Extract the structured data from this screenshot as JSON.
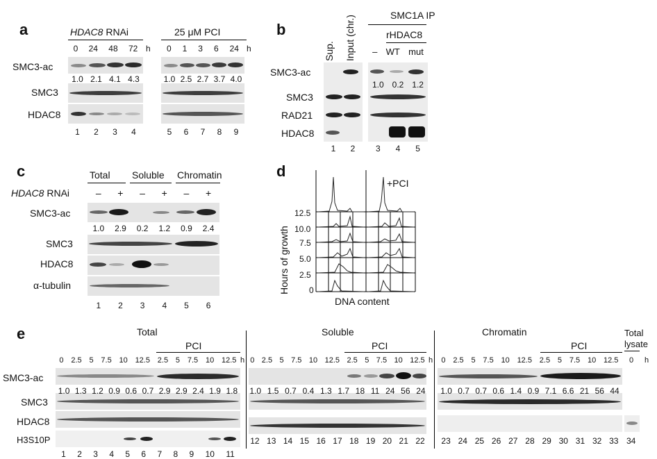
{
  "a": {
    "label": "a",
    "rnai_gene": "HDAC8",
    "rnai_suffix": " RNAi",
    "pci_title": "25 μM PCI",
    "rnai_times": [
      "0",
      "24",
      "48",
      "72"
    ],
    "pci_times": [
      "0",
      "1",
      "3",
      "6",
      "24"
    ],
    "unit": "h",
    "rows": [
      "SMC3-ac",
      "SMC3",
      "HDAC8"
    ],
    "rnai_quant": [
      "1.0",
      "2.1",
      "4.1",
      "4.3"
    ],
    "pci_quant": [
      "1.0",
      "2.5",
      "2.7",
      "3.7",
      "4.0"
    ],
    "rnai_lanes": [
      "1",
      "2",
      "3",
      "4"
    ],
    "pci_lanes": [
      "5",
      "6",
      "7",
      "8",
      "9"
    ]
  },
  "b": {
    "label": "b",
    "col_sup": "Sup.",
    "col_input": "Input (chr.)",
    "ip_title": "SMC1A IP",
    "rhdac8": "rHDAC8",
    "ip_cols": [
      "–",
      "WT",
      "mut"
    ],
    "rows": [
      "SMC3-ac",
      "SMC3",
      "RAD21",
      "HDAC8"
    ],
    "quant": [
      "1.0",
      "0.2",
      "1.2"
    ],
    "left_lanes": [
      "1",
      "2"
    ],
    "right_lanes": [
      "3",
      "4",
      "5"
    ]
  },
  "c": {
    "label": "c",
    "groups": [
      "Total",
      "Soluble",
      "Chromatin"
    ],
    "rnai_gene": "HDAC8",
    "rnai_suffix": " RNAi",
    "signs": [
      "–",
      "+",
      "–",
      "+",
      "–",
      "+"
    ],
    "rows": [
      "SMC3-ac",
      "SMC3",
      "HDAC8",
      "α-tubulin"
    ],
    "quant": [
      "1.0",
      "2.9",
      "0.2",
      "1.2",
      "0.9",
      "2.4"
    ],
    "lanes": [
      "1",
      "2",
      "3",
      "4",
      "5",
      "6"
    ]
  },
  "d": {
    "label": "d",
    "pci_label": "+PCI",
    "ylabel": "Hours of growth",
    "xlabel": "DNA content",
    "ticks": [
      "12.5",
      "10.0",
      "7.5",
      "5.0",
      "2.5",
      "0"
    ]
  },
  "e": {
    "label": "e",
    "total_title": "Total",
    "soluble_title": "Soluble",
    "chromatin_title": "Chromatin",
    "total_lysate": [
      "Total",
      "lysate"
    ],
    "pci": "PCI",
    "times": [
      "0",
      "2.5",
      "5",
      "7.5",
      "10",
      "12.5",
      "2.5",
      "5",
      "7.5",
      "10",
      "12.5"
    ],
    "unit": "h",
    "lysate_time": "0",
    "rows": [
      "SMC3-ac",
      "SMC3",
      "HDAC8",
      "H3S10P"
    ],
    "total_quant": [
      "1.0",
      "1.3",
      "1.2",
      "0.9",
      "0.6",
      "0.7",
      "2.9",
      "2.9",
      "2.4",
      "1.9",
      "1.8"
    ],
    "soluble_quant": [
      "1.0",
      "1.5",
      "0.7",
      "0.4",
      "1.3",
      "1.7",
      "18",
      "11",
      "24",
      "56",
      "24"
    ],
    "chromatin_quant": [
      "1.0",
      "0.7",
      "0.7",
      "0.6",
      "1.4",
      "0.9",
      "7.1",
      "6.6",
      "21",
      "56",
      "44"
    ],
    "total_lanes": [
      "1",
      "2",
      "3",
      "4",
      "5",
      "6",
      "7",
      "8",
      "9",
      "10",
      "11"
    ],
    "soluble_lanes": [
      "12",
      "13",
      "14",
      "15",
      "16",
      "17",
      "18",
      "19",
      "20",
      "21",
      "22"
    ],
    "chromatin_lanes": [
      "23",
      "24",
      "25",
      "26",
      "27",
      "28",
      "29",
      "30",
      "31",
      "32",
      "33"
    ],
    "lysate_lane": "34"
  }
}
